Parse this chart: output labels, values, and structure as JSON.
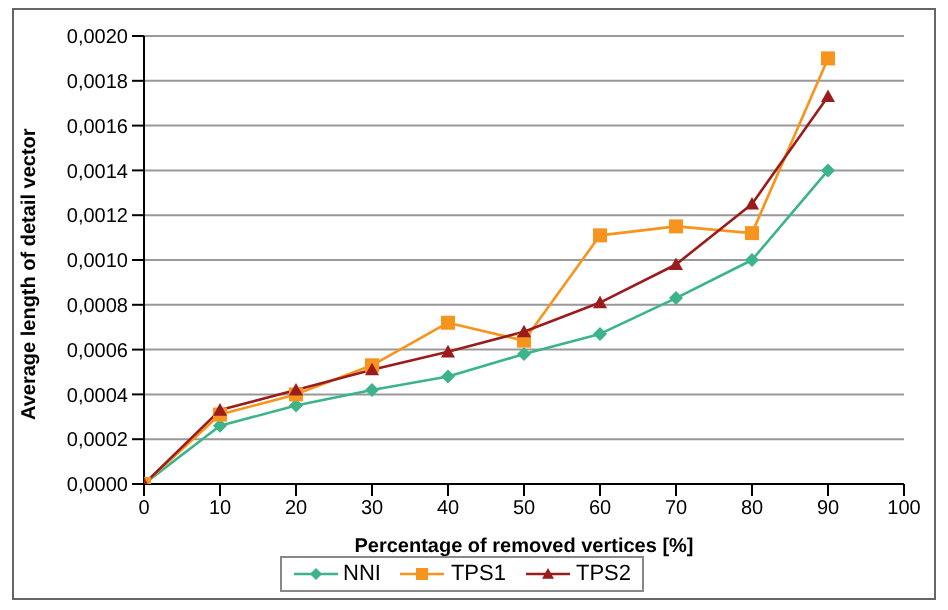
{
  "chart_data": {
    "type": "line",
    "xlabel": "Percentage of removed vertices [%]",
    "ylabel": "Average length of detail vector",
    "x": [
      0,
      10,
      20,
      30,
      40,
      50,
      60,
      70,
      80,
      90
    ],
    "series": [
      {
        "name": "NNI",
        "color": "#3cb489",
        "marker": "diamond",
        "values": [
          0,
          0.00026,
          0.00035,
          0.00042,
          0.00048,
          0.00058,
          0.00067,
          0.00083,
          0.001,
          0.0014
        ]
      },
      {
        "name": "TPS1",
        "color": "#f7941d",
        "marker": "square",
        "values": [
          0,
          0.00031,
          0.0004,
          0.00053,
          0.00072,
          0.00064,
          0.00111,
          0.00115,
          0.00112,
          0.0019
        ]
      },
      {
        "name": "TPS2",
        "color": "#9b1c1c",
        "marker": "triangle",
        "values": [
          0,
          0.00033,
          0.00042,
          0.00051,
          0.00059,
          0.00068,
          0.00081,
          0.00098,
          0.00125,
          0.00173
        ]
      }
    ],
    "xlim": [
      0,
      100
    ],
    "xticks": [
      0,
      10,
      20,
      30,
      40,
      50,
      60,
      70,
      80,
      90,
      100
    ],
    "ylim": [
      0,
      0.002
    ],
    "yticks": [
      {
        "value": 0,
        "label": "0,0000"
      },
      {
        "value": 0.0002,
        "label": "0,0002"
      },
      {
        "value": 0.0004,
        "label": "0,0004"
      },
      {
        "value": 0.0006,
        "label": "0,0006"
      },
      {
        "value": 0.0008,
        "label": "0,0008"
      },
      {
        "value": 0.001,
        "label": "0,0010"
      },
      {
        "value": 0.0012,
        "label": "0,0012"
      },
      {
        "value": 0.0014,
        "label": "0,0014"
      },
      {
        "value": 0.0016,
        "label": "0,0016"
      },
      {
        "value": 0.0018,
        "label": "0,0018"
      },
      {
        "value": 0.002,
        "label": "0,0020"
      }
    ],
    "grid": "y",
    "legend": "bottom",
    "line_style": "solid"
  }
}
